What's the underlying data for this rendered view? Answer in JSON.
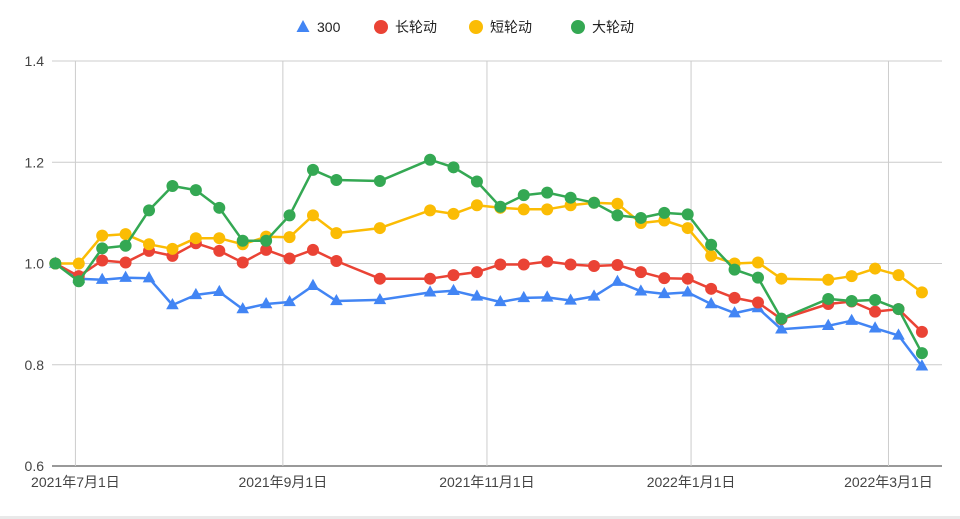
{
  "chart_data": {
    "type": "line",
    "title": "",
    "xlabel": "",
    "ylabel": "",
    "ylim": [
      0.6,
      1.4
    ],
    "y_ticks": [
      "0.6",
      "0.8",
      "1.0",
      "1.2",
      "1.4"
    ],
    "x_ticks": [
      {
        "date": "2021-07-01",
        "label": "2021年7月1日"
      },
      {
        "date": "2021-09-01",
        "label": "2021年9月1日"
      },
      {
        "date": "2021-11-01",
        "label": "2021年11月1日"
      },
      {
        "date": "2022-01-01",
        "label": "2022年1月1日"
      },
      {
        "date": "2022-03-01",
        "label": "2022年3月1日"
      }
    ],
    "xlim": [
      "2021-06-24",
      "2022-03-17"
    ],
    "grid": true,
    "legend_position": "top",
    "x": [
      "2021-06-25",
      "2021-07-02",
      "2021-07-09",
      "2021-07-16",
      "2021-07-23",
      "2021-07-30",
      "2021-08-06",
      "2021-08-13",
      "2021-08-20",
      "2021-08-27",
      "2021-09-03",
      "2021-09-10",
      "2021-09-17",
      "2021-09-30",
      "2021-10-15",
      "2021-10-22",
      "2021-10-29",
      "2021-11-05",
      "2021-11-12",
      "2021-11-19",
      "2021-11-26",
      "2021-12-03",
      "2021-12-10",
      "2021-12-17",
      "2021-12-24",
      "2021-12-31",
      "2022-01-07",
      "2022-01-14",
      "2022-01-21",
      "2022-01-28",
      "2022-02-11",
      "2022-02-18",
      "2022-02-25",
      "2022-03-04",
      "2022-03-11"
    ],
    "series": [
      {
        "name": "300",
        "marker": "triangle",
        "color": "#4285f4",
        "values": [
          1.0,
          0.97,
          0.968,
          0.972,
          0.971,
          0.918,
          0.938,
          0.944,
          0.91,
          0.92,
          0.924,
          0.956,
          0.926,
          0.928,
          0.943,
          0.946,
          0.935,
          0.924,
          0.932,
          0.933,
          0.927,
          0.935,
          0.964,
          0.945,
          0.94,
          0.943,
          0.92,
          0.902,
          0.912,
          0.87,
          0.877,
          0.887,
          0.872,
          0.858,
          0.797
        ]
      },
      {
        "name": "长轮动",
        "marker": "circle",
        "color": "#ea4335",
        "values": [
          1.0,
          0.975,
          1.006,
          1.002,
          1.025,
          1.015,
          1.04,
          1.025,
          1.002,
          1.027,
          1.01,
          1.027,
          1.005,
          0.97,
          0.97,
          0.977,
          0.983,
          0.998,
          0.998,
          1.004,
          0.998,
          0.995,
          0.997,
          0.983,
          0.971,
          0.97,
          0.95,
          0.932,
          0.923,
          0.89,
          0.92,
          0.925,
          0.905,
          0.91,
          0.865
        ]
      },
      {
        "name": "短轮动",
        "marker": "circle",
        "color": "#fbbc04",
        "values": [
          1.0,
          1.0,
          1.055,
          1.058,
          1.038,
          1.029,
          1.05,
          1.05,
          1.038,
          1.053,
          1.052,
          1.095,
          1.06,
          1.07,
          1.105,
          1.098,
          1.115,
          1.11,
          1.107,
          1.107,
          1.115,
          1.12,
          1.118,
          1.08,
          1.085,
          1.07,
          1.015,
          1.0,
          1.002,
          0.97,
          0.968,
          0.975,
          0.99,
          0.977,
          0.943
        ]
      },
      {
        "name": "大轮动",
        "marker": "circle",
        "color": "#34a853",
        "values": [
          1.0,
          0.965,
          1.03,
          1.035,
          1.105,
          1.153,
          1.145,
          1.11,
          1.045,
          1.045,
          1.095,
          1.185,
          1.165,
          1.163,
          1.205,
          1.19,
          1.162,
          1.112,
          1.135,
          1.14,
          1.13,
          1.12,
          1.095,
          1.09,
          1.1,
          1.097,
          1.037,
          0.988,
          0.972,
          0.891,
          0.93,
          0.926,
          0.928,
          0.91,
          0.823
        ]
      }
    ]
  }
}
